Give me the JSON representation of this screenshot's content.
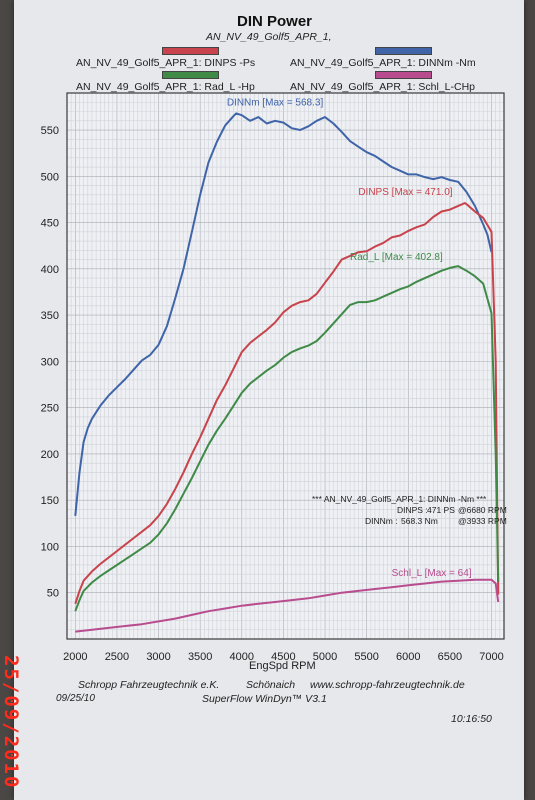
{
  "header": {
    "title": "DIN Power",
    "subtitle": "AN_NV_49_Golf5_APR_1,"
  },
  "legend": [
    {
      "label": "AN_NV_49_Golf5_APR_1: DINPS -Ps",
      "color": "#c8434b"
    },
    {
      "label": "AN_NV_49_Golf5_APR_1: DINNm -Nm",
      "color": "#3f64a8"
    },
    {
      "label": "AN_NV_49_Golf5_APR_1: Rad_L -Hp",
      "color": "#3f8a47"
    },
    {
      "label": "AN_NV_49_Golf5_APR_1: Schl_L-CHp",
      "color": "#b84c8f"
    }
  ],
  "info_box": {
    "title": "***  AN_NV_49_Golf5_APR_1: DINNm -Nm       ***",
    "row1": {
      "label": "DINPS :",
      "value": "471 PS",
      "rpm": "@6680 RPM"
    },
    "row2": {
      "label": "DINNm :",
      "value": "568.3 Nm",
      "rpm": "@3933 RPM"
    }
  },
  "footer": {
    "company": "Schropp Fahrzeugtechnik e.K.",
    "city": "Schönaich",
    "website": "www.schropp-fahrzeugtechnik.de",
    "date": "09/25/10",
    "software": "SuperFlow WinDyn™ V3.1",
    "time": "10:16:50"
  },
  "photo_date_stamp": "25/09/2010",
  "chart_data": {
    "type": "line",
    "xlabel": "EngSpd RPM",
    "ylabel": "",
    "xlim": [
      1900,
      7150
    ],
    "ylim": [
      0,
      590
    ],
    "x_ticks": [
      2000,
      2500,
      3000,
      3500,
      4000,
      4500,
      5000,
      5500,
      6000,
      6500,
      7000
    ],
    "y_ticks": [
      50,
      100,
      150,
      200,
      250,
      300,
      350,
      400,
      450,
      500,
      550
    ],
    "grid": true,
    "series": [
      {
        "name": "DINNm",
        "unit": "Nm",
        "color": "#3f64a8",
        "annotation": "DINNm  [Max = 568.3]",
        "x": [
          2000,
          2050,
          2100,
          2150,
          2200,
          2300,
          2400,
          2500,
          2600,
          2700,
          2800,
          2900,
          3000,
          3100,
          3200,
          3300,
          3400,
          3500,
          3600,
          3700,
          3800,
          3900,
          3933,
          4000,
          4100,
          4200,
          4300,
          4400,
          4500,
          4600,
          4700,
          4800,
          4900,
          5000,
          5100,
          5200,
          5300,
          5400,
          5500,
          5600,
          5700,
          5800,
          5900,
          6000,
          6100,
          6200,
          6300,
          6400,
          6500,
          6600,
          6700,
          6800,
          6900,
          6950,
          7000
        ],
        "y": [
          133,
          180,
          213,
          228,
          238,
          252,
          263,
          272,
          281,
          291,
          301,
          307,
          318,
          338,
          368,
          400,
          440,
          480,
          515,
          537,
          555,
          565,
          568,
          566,
          560,
          564,
          557,
          560,
          558,
          552,
          550,
          554,
          560,
          564,
          557,
          548,
          538,
          532,
          526,
          522,
          516,
          510,
          506,
          502,
          502,
          499,
          497,
          499,
          496,
          494,
          483,
          468,
          448,
          437,
          418
        ]
      },
      {
        "name": "DINPS",
        "unit": "PS",
        "color": "#c8434b",
        "annotation": "DINPS  [Max = 471.0]",
        "x": [
          2000,
          2050,
          2100,
          2200,
          2300,
          2400,
          2500,
          2600,
          2700,
          2800,
          2900,
          3000,
          3100,
          3200,
          3300,
          3400,
          3500,
          3600,
          3700,
          3800,
          3900,
          4000,
          4100,
          4200,
          4300,
          4400,
          4500,
          4600,
          4700,
          4800,
          4900,
          5000,
          5100,
          5200,
          5300,
          5400,
          5500,
          5600,
          5700,
          5800,
          5900,
          6000,
          6100,
          6200,
          6300,
          6400,
          6500,
          6600,
          6680,
          6700,
          6800,
          6900,
          7000,
          7050,
          7080
        ],
        "y": [
          38,
          52,
          63,
          73,
          81,
          88,
          95,
          102,
          109,
          116,
          123,
          133,
          146,
          162,
          180,
          200,
          218,
          238,
          258,
          274,
          292,
          310,
          320,
          327,
          334,
          342,
          353,
          360,
          364,
          366,
          373,
          385,
          397,
          410,
          414,
          418,
          419,
          424,
          428,
          434,
          436,
          441,
          445,
          448,
          456,
          462,
          464,
          468,
          471,
          470,
          462,
          455,
          440,
          300,
          48
        ]
      },
      {
        "name": "Rad_L",
        "unit": "Hp",
        "color": "#3f8a47",
        "annotation": "Rad_L  [Max = 402.8]",
        "x": [
          2000,
          2050,
          2100,
          2200,
          2300,
          2400,
          2500,
          2600,
          2700,
          2800,
          2900,
          3000,
          3100,
          3200,
          3300,
          3400,
          3500,
          3600,
          3700,
          3800,
          3900,
          4000,
          4100,
          4200,
          4300,
          4400,
          4500,
          4600,
          4700,
          4800,
          4900,
          5000,
          5100,
          5200,
          5300,
          5400,
          5500,
          5600,
          5700,
          5800,
          5900,
          6000,
          6100,
          6200,
          6300,
          6400,
          6500,
          6600,
          6700,
          6800,
          6900,
          7000,
          7050,
          7080
        ],
        "y": [
          30,
          42,
          52,
          61,
          68,
          74,
          80,
          86,
          92,
          98,
          104,
          113,
          125,
          140,
          157,
          174,
          192,
          210,
          225,
          238,
          252,
          266,
          276,
          283,
          290,
          296,
          304,
          310,
          314,
          317,
          322,
          331,
          341,
          351,
          361,
          364,
          364,
          366,
          370,
          374,
          378,
          381,
          386,
          390,
          394,
          398,
          401,
          403,
          398,
          392,
          384,
          352,
          200,
          62
        ]
      },
      {
        "name": "Schl_L",
        "unit": "CHp",
        "color": "#b84c8f",
        "annotation": "Schl_L  [Max = 64]",
        "x": [
          2000,
          2200,
          2400,
          2600,
          2800,
          3000,
          3200,
          3400,
          3600,
          3800,
          4000,
          4200,
          4400,
          4600,
          4800,
          5000,
          5200,
          5400,
          5600,
          5800,
          6000,
          6200,
          6400,
          6600,
          6800,
          7000,
          7050,
          7080
        ],
        "y": [
          8,
          10,
          12,
          14,
          16,
          19,
          22,
          26,
          30,
          33,
          36,
          38,
          40,
          42,
          44,
          47,
          50,
          52,
          54,
          56,
          58,
          60,
          62,
          63,
          64,
          64,
          60,
          40
        ]
      }
    ]
  }
}
